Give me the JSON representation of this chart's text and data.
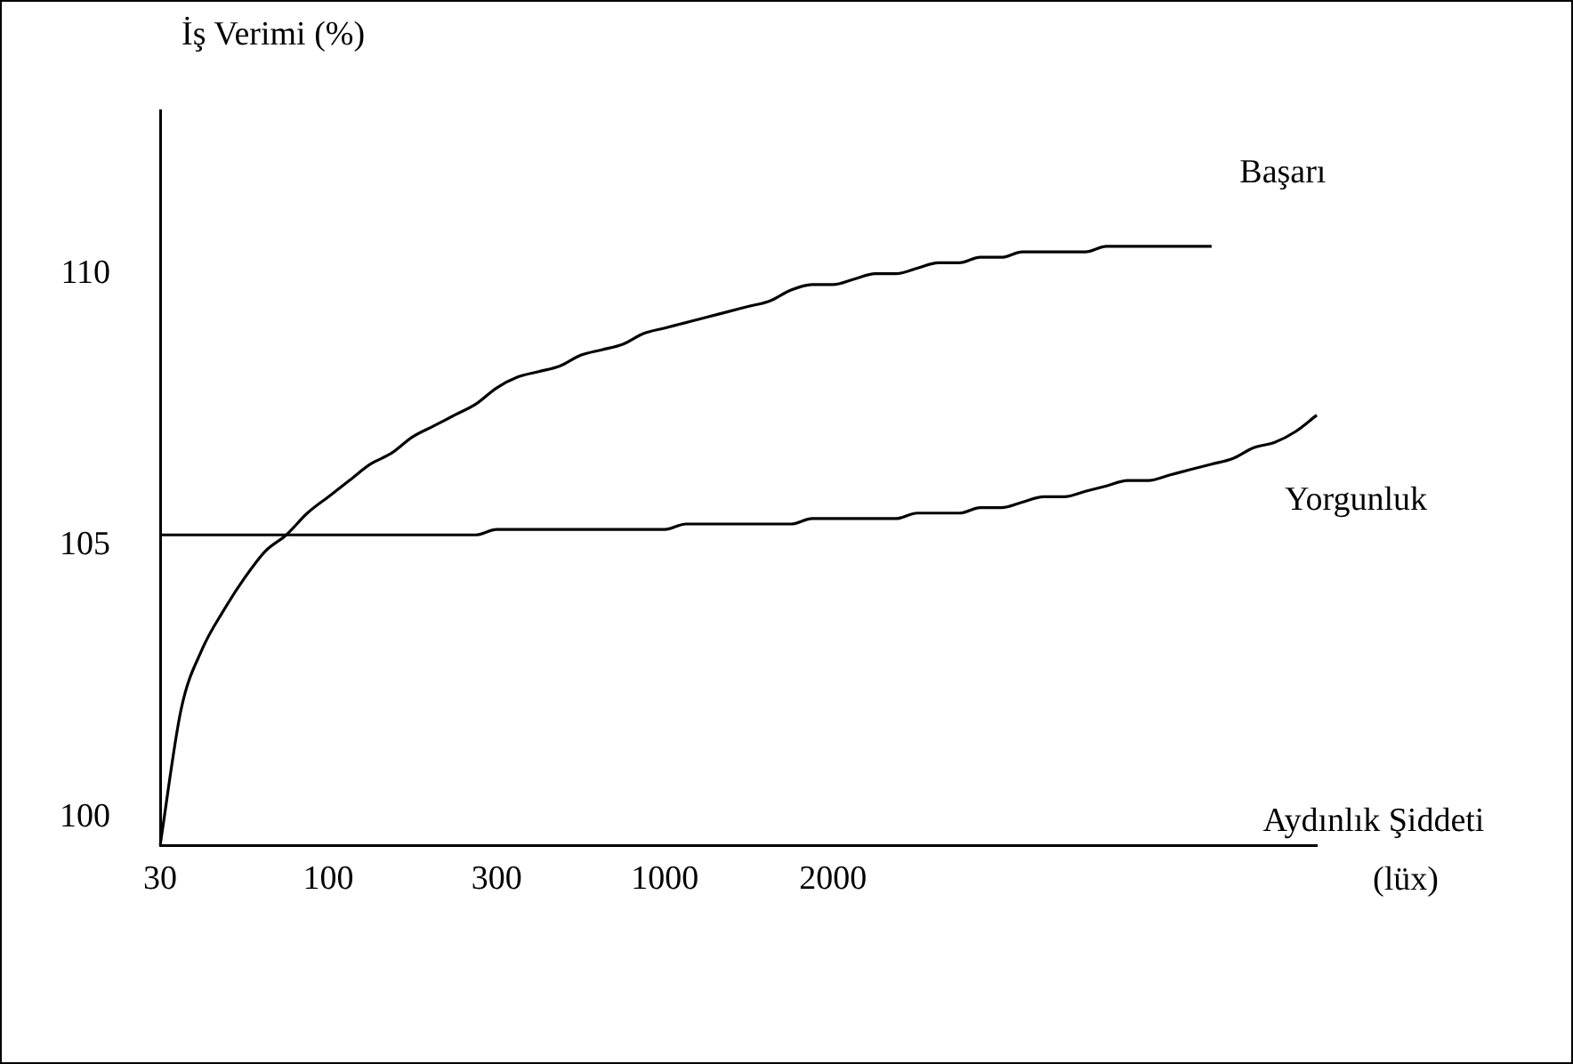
{
  "chart_data": {
    "type": "line",
    "ylabel": "İş Verimi (%)",
    "xlabel": "Aydınlık Şiddeti",
    "annotations": [
      "(lüx)"
    ],
    "categories": [
      "30",
      null,
      null,
      null,
      null,
      null,
      null,
      null,
      "100",
      null,
      null,
      null,
      null,
      null,
      null,
      null,
      "300",
      null,
      null,
      null,
      null,
      null,
      null,
      null,
      "1000",
      null,
      null,
      null,
      null,
      null,
      null,
      null,
      "2000",
      null,
      null,
      null,
      null,
      null,
      null,
      null,
      null,
      null,
      null,
      null,
      null,
      null,
      null,
      null,
      null,
      null,
      null,
      null,
      null,
      null,
      null,
      null
    ],
    "ylim": [
      99.5,
      113
    ],
    "yticks": [
      100,
      105,
      110
    ],
    "grid": false,
    "legend": false,
    "marker": "none",
    "line_style": "solid",
    "series": [
      {
        "name": "Başarı",
        "color": "#000000",
        "values": [
          99.5,
          102.0,
          103.1,
          103.8,
          104.4,
          104.9,
          105.2,
          105.6,
          105.9,
          106.2,
          106.5,
          106.7,
          107.0,
          107.2,
          107.4,
          107.6,
          107.9,
          108.1,
          108.2,
          108.3,
          108.5,
          108.6,
          108.7,
          108.9,
          109.0,
          109.1,
          109.2,
          109.3,
          109.4,
          109.5,
          109.7,
          109.8,
          109.8,
          109.9,
          110.0,
          110.0,
          110.1,
          110.2,
          110.2,
          110.3,
          110.3,
          110.4,
          110.4,
          110.4,
          110.4,
          110.5,
          110.5,
          110.5,
          110.5,
          110.5,
          110.5,
          null,
          null,
          null,
          null,
          null
        ]
      },
      {
        "name": "Yorgunluk",
        "color": "#000000",
        "values": [
          105.2,
          105.2,
          105.2,
          105.2,
          105.2,
          105.2,
          105.2,
          105.2,
          105.2,
          105.2,
          105.2,
          105.2,
          105.2,
          105.2,
          105.2,
          105.2,
          105.3,
          105.3,
          105.3,
          105.3,
          105.3,
          105.3,
          105.3,
          105.3,
          105.3,
          105.4,
          105.4,
          105.4,
          105.4,
          105.4,
          105.4,
          105.5,
          105.5,
          105.5,
          105.5,
          105.5,
          105.6,
          105.6,
          105.6,
          105.7,
          105.7,
          105.8,
          105.9,
          105.9,
          106.0,
          106.1,
          106.2,
          106.2,
          106.3,
          106.4,
          106.5,
          106.6,
          106.8,
          106.9,
          107.1,
          107.4
        ]
      }
    ]
  }
}
